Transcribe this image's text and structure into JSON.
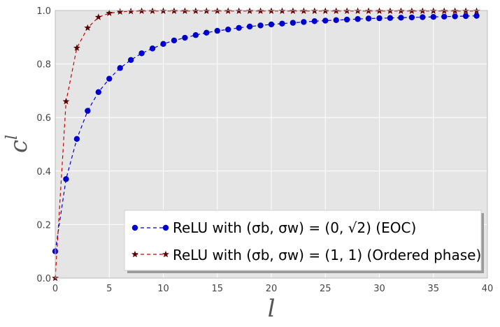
{
  "chart_data": {
    "type": "line",
    "xlabel": "l",
    "ylabel": "c",
    "ylabel_superscript": "l",
    "xlim": [
      0,
      40
    ],
    "ylim": [
      0.0,
      1.0
    ],
    "xticks": [
      "0",
      "5",
      "10",
      "15",
      "20",
      "25",
      "30",
      "35",
      "40"
    ],
    "yticks": [
      "0.0",
      "0.2",
      "0.4",
      "0.6",
      "0.8",
      "1.0"
    ],
    "grid": true,
    "legend_position": "lower-right",
    "background_color": "#e5e5e5",
    "series": [
      {
        "name": "ReLU with (σb, σw) = (0, √2) (EOC)",
        "legend_label": "ReLU with (σ_b, σ_w) = (0, √2) (EOC)",
        "color": "#0000cc",
        "marker": "circle",
        "line_style": "dashed",
        "x": [
          0,
          1,
          2,
          3,
          4,
          5,
          6,
          7,
          8,
          9,
          10,
          11,
          12,
          13,
          14,
          15,
          16,
          17,
          18,
          19,
          20,
          21,
          22,
          23,
          24,
          25,
          26,
          27,
          28,
          29,
          30,
          31,
          32,
          33,
          34,
          35,
          36,
          37,
          38,
          39
        ],
        "y": [
          0.1,
          0.37,
          0.52,
          0.625,
          0.695,
          0.745,
          0.785,
          0.815,
          0.84,
          0.858,
          0.875,
          0.888,
          0.898,
          0.908,
          0.917,
          0.924,
          0.929,
          0.935,
          0.94,
          0.944,
          0.948,
          0.951,
          0.954,
          0.957,
          0.96,
          0.962,
          0.964,
          0.966,
          0.968,
          0.97,
          0.971,
          0.972,
          0.973,
          0.974,
          0.975,
          0.976,
          0.977,
          0.978,
          0.979,
          0.98
        ]
      },
      {
        "name": "ReLU with (σb, σw) = (1, 1) (Ordered phase)",
        "legend_label": "ReLU with (σ_b, σ_w) = (1, 1) (Ordered phase)",
        "color": "#cc0000",
        "marker_color": "#5a0000",
        "marker": "star",
        "line_style": "dashed",
        "x": [
          0,
          1,
          2,
          3,
          4,
          5,
          6,
          7,
          8,
          9,
          10,
          11,
          12,
          13,
          14,
          15,
          16,
          17,
          18,
          19,
          20,
          21,
          22,
          23,
          24,
          25,
          26,
          27,
          28,
          29,
          30,
          31,
          32,
          33,
          34,
          35,
          36,
          37,
          38,
          39
        ],
        "y": [
          0.0,
          0.66,
          0.86,
          0.935,
          0.975,
          0.99,
          0.995,
          0.997,
          0.998,
          0.998,
          0.998,
          0.998,
          0.998,
          0.998,
          0.998,
          0.998,
          0.998,
          0.998,
          0.998,
          0.998,
          0.998,
          0.998,
          0.998,
          0.998,
          0.998,
          0.998,
          0.998,
          0.998,
          0.998,
          0.998,
          0.998,
          0.998,
          0.998,
          0.998,
          0.998,
          0.998,
          0.998,
          0.998,
          0.998,
          0.998
        ]
      }
    ]
  }
}
